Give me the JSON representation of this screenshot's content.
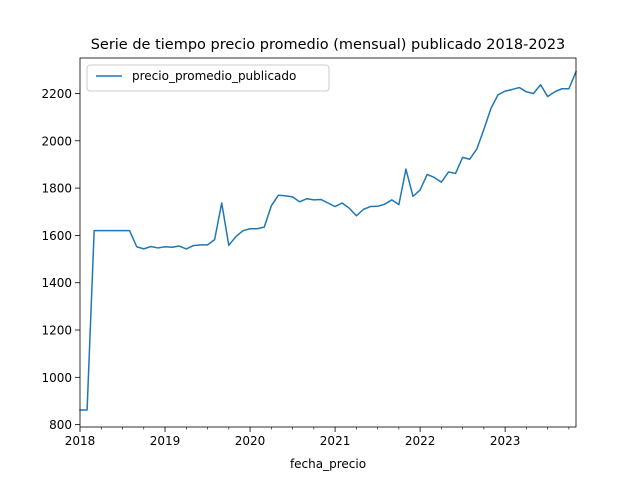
{
  "chart_data": {
    "type": "line",
    "title": "Serie de tiempo precio promedio (mensual) publicado 2018-2023",
    "xlabel": "fecha_precio",
    "ylabel": "",
    "xlim": [
      "2018-01",
      "2023-11"
    ],
    "ylim": [
      790,
      2350
    ],
    "grid": false,
    "legend_position": "top-left",
    "x_ticks": [
      {
        "value": "2018-01",
        "label": "2018"
      },
      {
        "value": "2019-01",
        "label": "2019"
      },
      {
        "value": "2020-01",
        "label": "2020"
      },
      {
        "value": "2021-01",
        "label": "2021"
      },
      {
        "value": "2022-01",
        "label": "2022"
      },
      {
        "value": "2023-01",
        "label": "2023"
      }
    ],
    "y_ticks": [
      800,
      1000,
      1200,
      1400,
      1600,
      1800,
      2000,
      2200
    ],
    "series": [
      {
        "name": "precio_promedio_publicado",
        "color": "#1f77b4",
        "x": [
          "2018-01",
          "2018-02",
          "2018-03",
          "2018-04",
          "2018-05",
          "2018-06",
          "2018-07",
          "2018-08",
          "2018-09",
          "2018-10",
          "2018-11",
          "2018-12",
          "2019-01",
          "2019-02",
          "2019-03",
          "2019-04",
          "2019-05",
          "2019-06",
          "2019-07",
          "2019-08",
          "2019-09",
          "2019-10",
          "2019-11",
          "2019-12",
          "2020-01",
          "2020-02",
          "2020-03",
          "2020-04",
          "2020-05",
          "2020-06",
          "2020-07",
          "2020-08",
          "2020-09",
          "2020-10",
          "2020-11",
          "2020-12",
          "2021-01",
          "2021-02",
          "2021-03",
          "2021-04",
          "2021-05",
          "2021-06",
          "2021-07",
          "2021-08",
          "2021-09",
          "2021-10",
          "2021-11",
          "2021-12",
          "2022-01",
          "2022-02",
          "2022-03",
          "2022-04",
          "2022-05",
          "2022-06",
          "2022-07",
          "2022-08",
          "2022-09",
          "2022-10",
          "2022-11",
          "2022-12",
          "2023-01",
          "2023-02",
          "2023-03",
          "2023-04",
          "2023-05",
          "2023-06",
          "2023-07",
          "2023-08",
          "2023-09",
          "2023-10",
          "2023-11"
        ],
        "values": [
          862,
          862,
          1620,
          1620,
          1620,
          1620,
          1620,
          1620,
          1552,
          1543,
          1553,
          1547,
          1552,
          1550,
          1555,
          1543,
          1557,
          1560,
          1560,
          1582,
          1737,
          1558,
          1595,
          1620,
          1628,
          1628,
          1635,
          1725,
          1770,
          1767,
          1763,
          1742,
          1755,
          1750,
          1752,
          1737,
          1722,
          1737,
          1715,
          1683,
          1710,
          1722,
          1723,
          1732,
          1750,
          1730,
          1880,
          1765,
          1792,
          1858,
          1845,
          1825,
          1868,
          1862,
          1930,
          1922,
          1965,
          2048,
          2137,
          2195,
          2210,
          2217,
          2225,
          2207,
          2200,
          2237,
          2187,
          2207,
          2220,
          2220,
          2292
        ]
      }
    ]
  }
}
